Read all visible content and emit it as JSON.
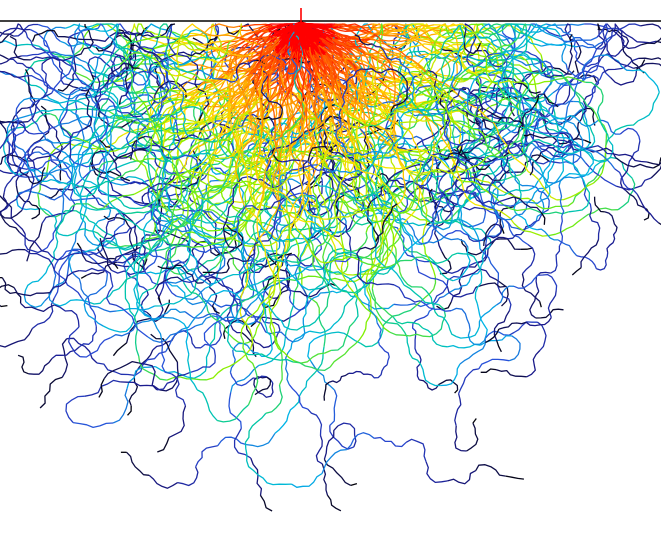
{
  "image": {
    "subject": "particle-trajectories",
    "background_color": "#ffffff",
    "surface_line_color": "#000000",
    "source_color": "#ff0000",
    "trajectory_count": 200,
    "color_scale": [
      "#ff0000",
      "#ff8c00",
      "#ffe600",
      "#7cf000",
      "#00c8a0",
      "#00b4e6",
      "#2a4cd8",
      "#1a1a8c",
      "#000000"
    ]
  }
}
